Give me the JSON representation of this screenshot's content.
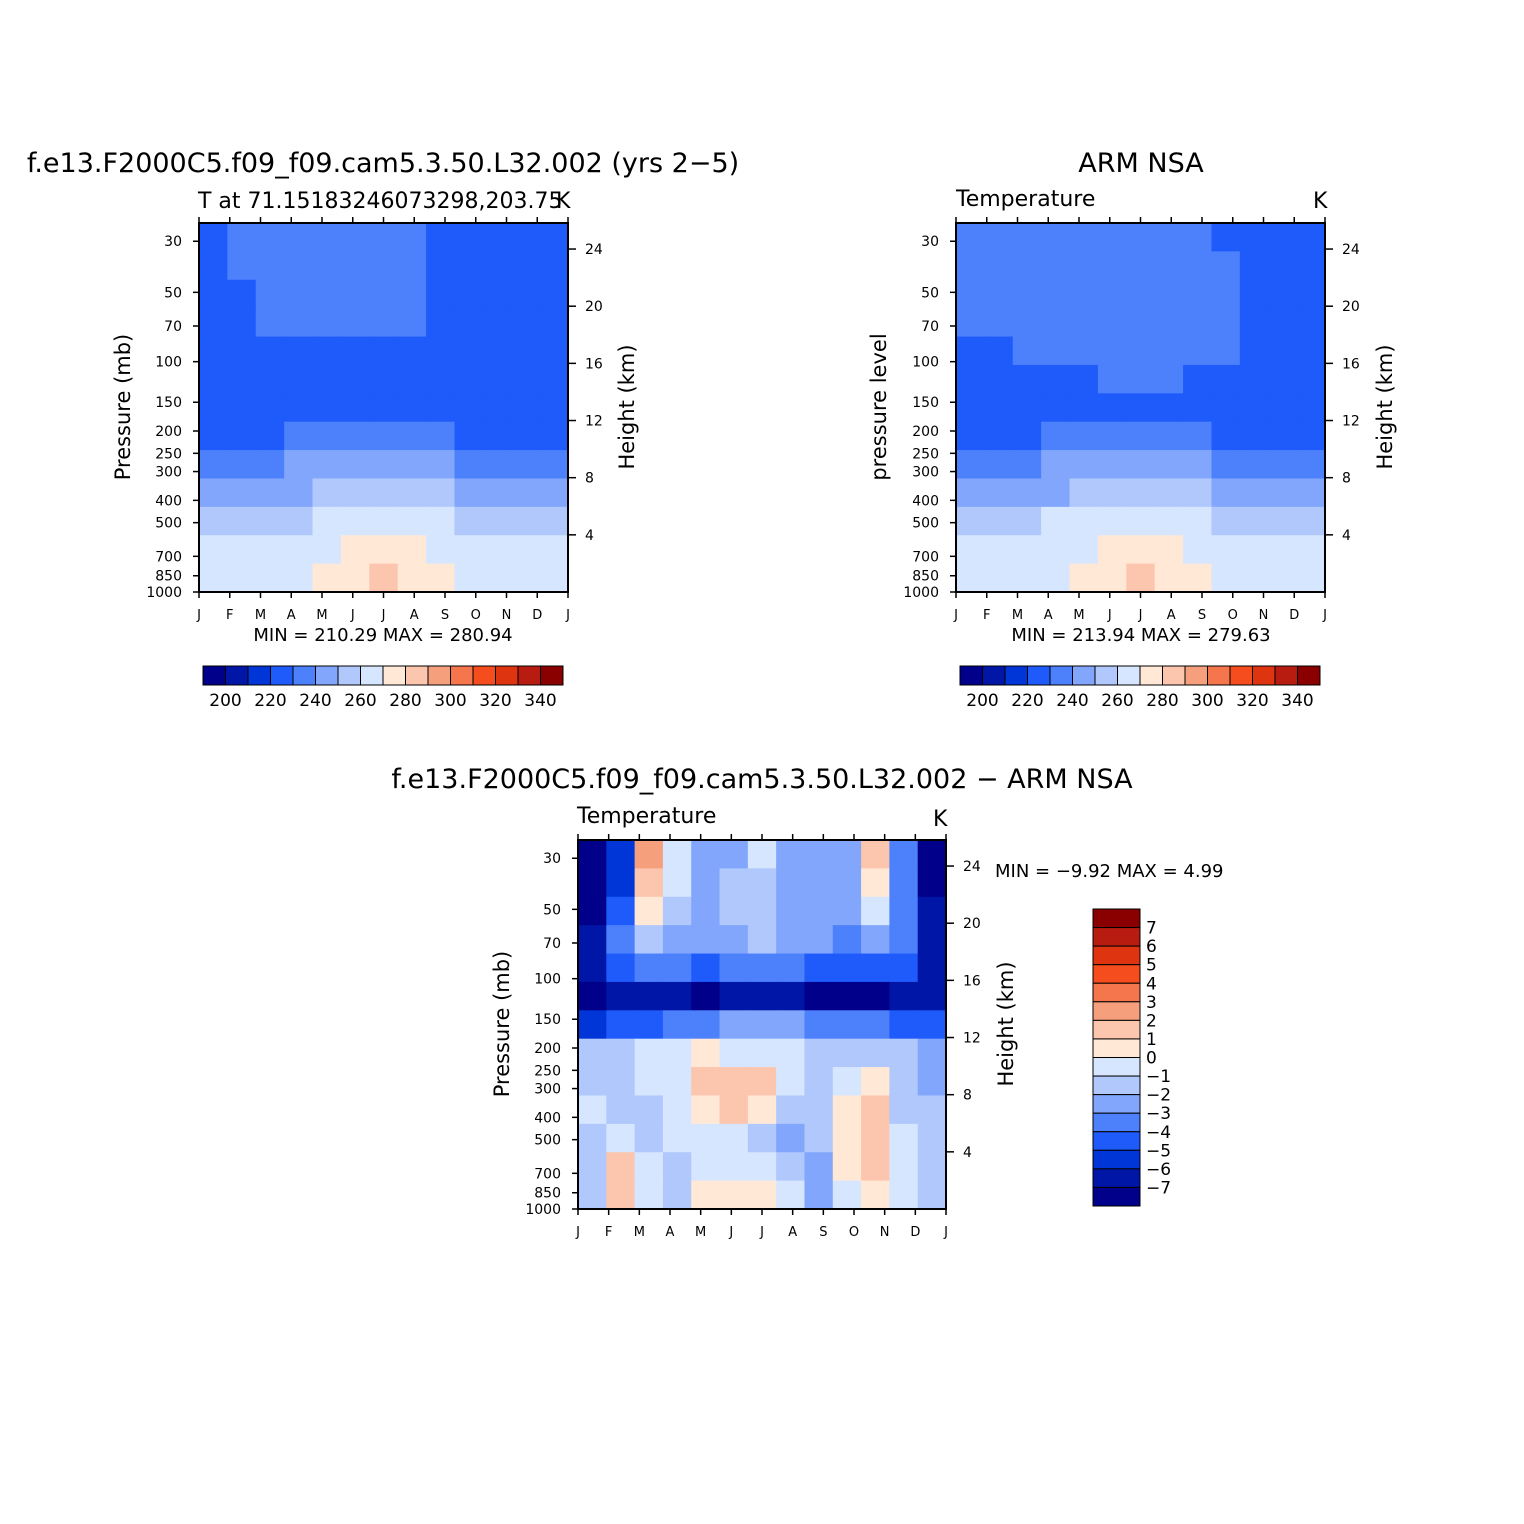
{
  "figure": {
    "colors": [
      "#00008a",
      "#0016a6",
      "#0035d8",
      "#1f5bfb",
      "#4d80fb",
      "#82a6fb",
      "#b0c8fb",
      "#d6e6ff",
      "#ffe8d6",
      "#fcc5ad",
      "#f59f7d",
      "#f5764c",
      "#f54d1d",
      "#de3510",
      "#b81b10",
      "#8a0000"
    ]
  },
  "chart_data": [
    {
      "type": "heatmap",
      "name": "model",
      "title": "f.e13.F2000C5.f09_f09.cam5.3.50.L32.002 (yrs 2−5)",
      "subtitle": "T at 71.15183246073298,203.75",
      "units": "K",
      "ylabel": "Pressure (mb)",
      "ylabel_right": "Height (km)",
      "x": [
        "J",
        "F",
        "M",
        "A",
        "M",
        "J",
        "J",
        "A",
        "S",
        "O",
        "N",
        "D",
        "J"
      ],
      "y_pressure_ticks": [
        30,
        50,
        70,
        100,
        150,
        200,
        250,
        300,
        400,
        500,
        700,
        850,
        1000
      ],
      "y_height_ticks": [
        24,
        20,
        16,
        12,
        8,
        4
      ],
      "min_label": "MIN = 210.29 MAX = 280.94",
      "colorbar_labels": [
        "200",
        "220",
        "240",
        "260",
        "280",
        "300",
        "320",
        "340"
      ],
      "levels": [
        [
          220,
          225,
          225,
          225,
          225,
          225,
          225,
          225,
          222,
          220,
          220,
          220,
          220
        ],
        [
          222,
          225,
          226,
          226,
          226,
          226,
          226,
          226,
          224,
          222,
          222,
          222,
          222
        ],
        [
          222,
          224,
          226,
          226,
          226,
          226,
          226,
          226,
          224,
          222,
          222,
          222,
          222
        ],
        [
          222,
          224,
          225,
          225,
          225,
          225,
          225,
          225,
          224,
          222,
          222,
          222,
          222
        ],
        [
          221,
          221,
          223,
          224,
          224,
          224,
          224,
          224,
          222,
          221,
          221,
          221,
          221
        ],
        [
          218,
          218,
          219,
          220,
          220,
          220,
          221,
          221,
          220,
          219,
          218,
          218,
          218
        ],
        [
          217,
          217,
          217,
          218,
          219,
          221,
          222,
          221,
          219,
          218,
          217,
          217,
          217
        ],
        [
          222,
          222,
          223,
          225,
          227,
          228,
          229,
          228,
          226,
          224,
          223,
          222,
          222
        ],
        [
          232,
          232,
          232,
          235,
          238,
          241,
          242,
          241,
          237,
          234,
          233,
          232,
          232
        ],
        [
          240,
          240,
          239,
          242,
          246,
          249,
          251,
          249,
          245,
          242,
          241,
          240,
          240
        ],
        [
          252,
          252,
          251,
          254,
          258,
          261,
          263,
          261,
          257,
          254,
          253,
          252,
          252
        ],
        [
          256,
          256,
          255,
          258,
          264,
          268,
          270,
          268,
          263,
          258,
          257,
          256,
          256
        ],
        [
          258,
          258,
          258,
          262,
          268,
          274,
          276,
          274,
          266,
          261,
          259,
          258,
          258
        ]
      ]
    },
    {
      "type": "heatmap",
      "name": "obs",
      "title": "ARM NSA",
      "subtitle": "Temperature",
      "units": "K",
      "ylabel": "pressure level",
      "ylabel_right": "Height (km)",
      "x": [
        "J",
        "F",
        "M",
        "A",
        "M",
        "J",
        "J",
        "A",
        "S",
        "O",
        "N",
        "D",
        "J"
      ],
      "y_pressure_ticks": [
        30,
        50,
        70,
        100,
        150,
        200,
        250,
        300,
        400,
        500,
        700,
        850,
        1000
      ],
      "y_height_ticks": [
        24,
        20,
        16,
        12,
        8,
        4
      ],
      "min_label": "MIN = 213.94 MAX = 279.63",
      "colorbar_labels": [
        "200",
        "220",
        "240",
        "260",
        "280",
        "300",
        "320",
        "340"
      ],
      "levels": [
        [
          225,
          225,
          225,
          225,
          225,
          225,
          225,
          225,
          225,
          222,
          222,
          222,
          221
        ],
        [
          225,
          225,
          225,
          225,
          225,
          225,
          225,
          225,
          225,
          225,
          222,
          222,
          222
        ],
        [
          225,
          225,
          225,
          225,
          225,
          225,
          225,
          225,
          225,
          225,
          222,
          222,
          222
        ],
        [
          225,
          225,
          225,
          225,
          225,
          225,
          225,
          225,
          225,
          225,
          222,
          222,
          222
        ],
        [
          223,
          224,
          225,
          225,
          225,
          225,
          225,
          225,
          225,
          225,
          222,
          222,
          222
        ],
        [
          221,
          221,
          222,
          223,
          224,
          225,
          225,
          225,
          224,
          222,
          221,
          221,
          221
        ],
        [
          218,
          218,
          219,
          221,
          223,
          224,
          224,
          224,
          221,
          219,
          218,
          218,
          218
        ],
        [
          222,
          222,
          223,
          225,
          227,
          229,
          230,
          229,
          226,
          224,
          223,
          222,
          222
        ],
        [
          232,
          232,
          232,
          235,
          238,
          241,
          242,
          241,
          237,
          234,
          233,
          232,
          232
        ],
        [
          240,
          240,
          240,
          243,
          246,
          249,
          251,
          249,
          245,
          242,
          241,
          240,
          240
        ],
        [
          252,
          252,
          252,
          255,
          258,
          261,
          263,
          261,
          257,
          254,
          253,
          252,
          252
        ],
        [
          257,
          257,
          257,
          260,
          264,
          268,
          270,
          268,
          263,
          259,
          258,
          257,
          257
        ],
        [
          259,
          259,
          260,
          264,
          269,
          273,
          275,
          273,
          268,
          263,
          260,
          259,
          259
        ]
      ]
    },
    {
      "type": "heatmap",
      "name": "diff",
      "title": "f.e13.F2000C5.f09_f09.cam5.3.50.L32.002 − ARM NSA",
      "subtitle": "Temperature",
      "units": "K",
      "ylabel": "Pressure (mb)",
      "ylabel_right": "Height (km)",
      "x": [
        "J",
        "F",
        "M",
        "A",
        "M",
        "J",
        "J",
        "A",
        "S",
        "O",
        "N",
        "D",
        "J"
      ],
      "y_pressure_ticks": [
        30,
        50,
        70,
        100,
        150,
        200,
        250,
        300,
        400,
        500,
        700,
        850,
        1000
      ],
      "y_height_ticks": [
        24,
        20,
        16,
        12,
        8,
        4
      ],
      "min_label": "MIN = −9.92 MAX = 4.99",
      "colorbar_labels": [
        "7",
        "6",
        "5",
        "4",
        "3",
        "2",
        "1",
        "0",
        "−1",
        "−2",
        "−3",
        "−4",
        "−5",
        "−6",
        "−7"
      ],
      "levels": [
        [
          -9,
          -6,
          2,
          -1,
          -3,
          -3,
          -1,
          -3,
          -3,
          -3,
          1,
          -4,
          -9
        ],
        [
          -8,
          -6,
          1,
          -1,
          -3,
          -2,
          -2,
          -3,
          -3,
          -3,
          0,
          -4,
          -8
        ],
        [
          -8,
          -5,
          0,
          -2,
          -3,
          -2,
          -2,
          -3,
          -3,
          -3,
          -1,
          -4,
          -7
        ],
        [
          -7,
          -4,
          -2,
          -3,
          -3,
          -3,
          -2,
          -3,
          -3,
          -4,
          -3,
          -4,
          -7
        ],
        [
          -7,
          -5,
          -4,
          -4,
          -5,
          -4,
          -4,
          -4,
          -5,
          -5,
          -5,
          -5,
          -7
        ],
        [
          -8,
          -7,
          -7,
          -7,
          -8,
          -7,
          -7,
          -7,
          -8,
          -9,
          -8,
          -7,
          -7
        ],
        [
          -6,
          -5,
          -5,
          -4,
          -4,
          -3,
          -3,
          -3,
          -4,
          -4,
          -4,
          -5,
          -5
        ],
        [
          -2,
          -2,
          -1,
          -1,
          0,
          -1,
          -1,
          -1,
          -2,
          -2,
          -2,
          -2,
          -3
        ],
        [
          -2,
          -2,
          -1,
          -1,
          1,
          1,
          1,
          -1,
          -2,
          -1,
          0,
          -2,
          -3
        ],
        [
          -1,
          -2,
          -2,
          -1,
          0,
          1,
          0,
          -2,
          -2,
          0,
          1,
          -2,
          -2
        ],
        [
          -2,
          -1,
          -2,
          -1,
          -1,
          -1,
          -2,
          -3,
          -2,
          0,
          1,
          -1,
          -2
        ],
        [
          -2,
          1,
          -1,
          -2,
          -1,
          -1,
          -1,
          -2,
          -3,
          0,
          1,
          -1,
          -2
        ],
        [
          -2,
          1,
          -1,
          -2,
          0,
          0,
          0,
          -1,
          -3,
          -1,
          0,
          -1,
          -2
        ]
      ]
    }
  ]
}
